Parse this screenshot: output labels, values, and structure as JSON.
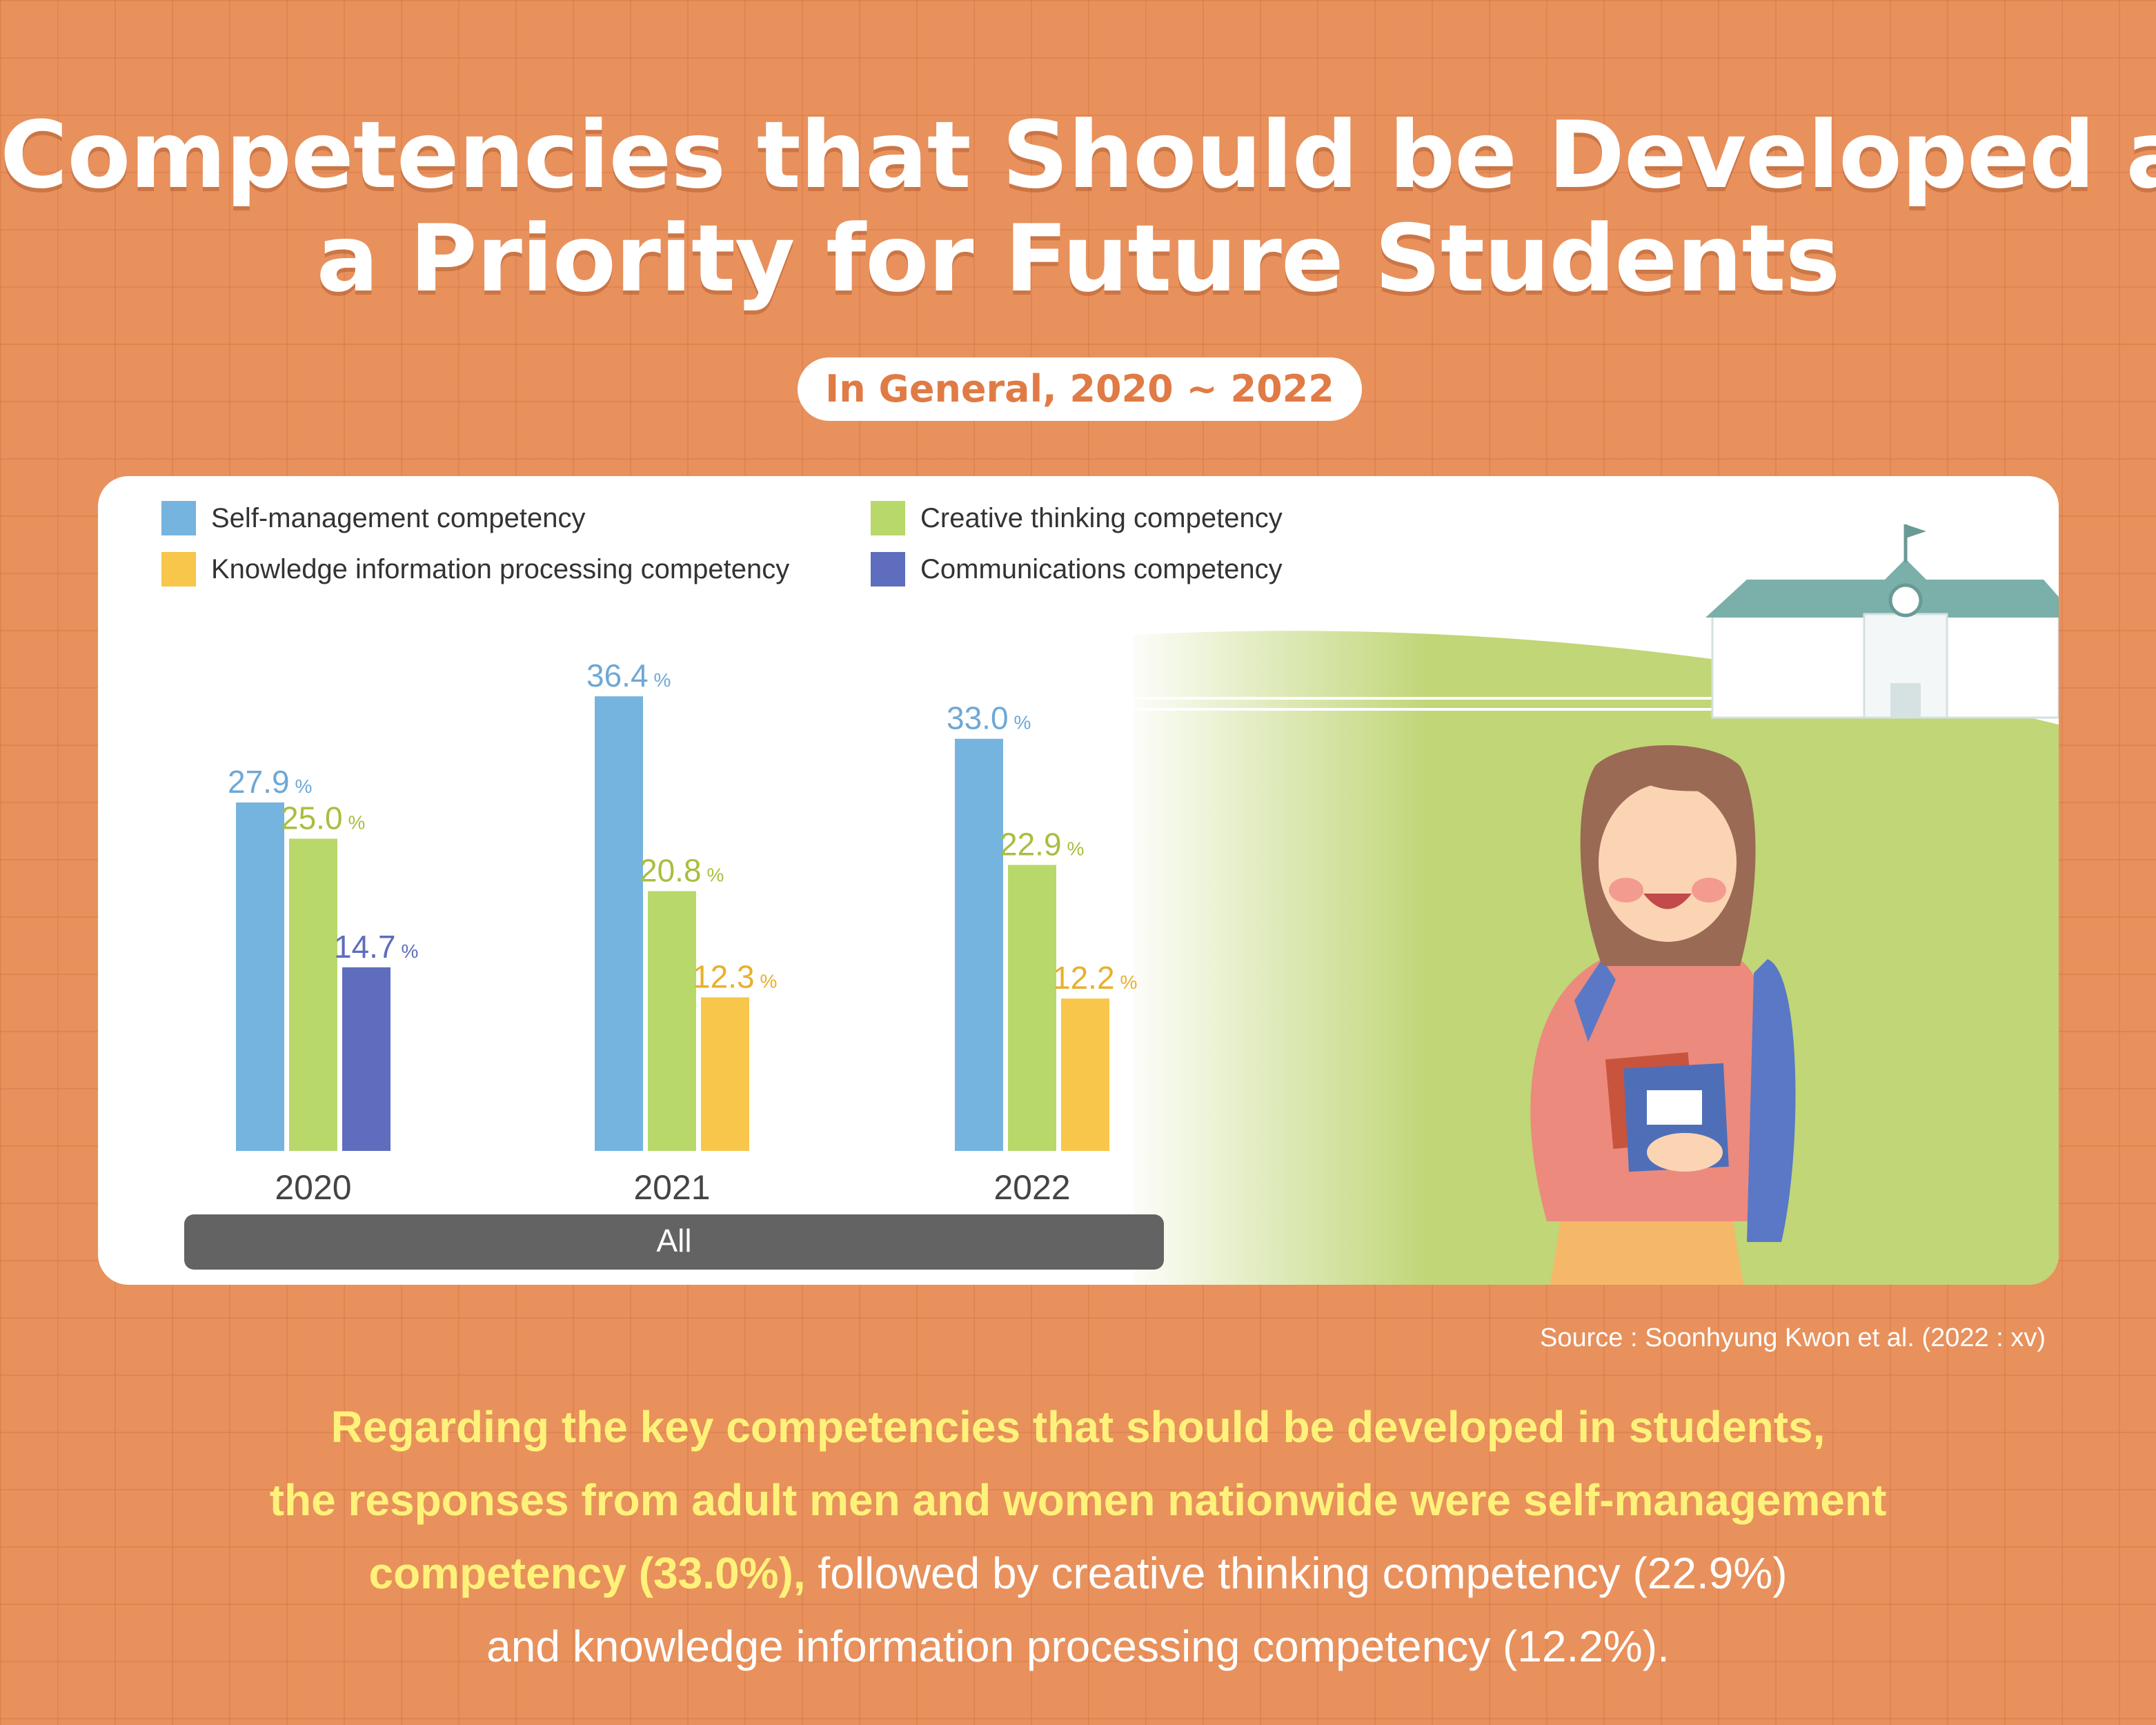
{
  "title": {
    "line1": "Competencies that Should be Developed as",
    "line2": "a Priority for Future Students"
  },
  "subtitle": "In General, 2020 ~ 2022",
  "colors": {
    "self_management": "#74B4DF",
    "creative_thinking": "#B8D86A",
    "knowledge_processing": "#F7C64A",
    "communications": "#5E6DBE",
    "background": "#E8915C",
    "group_bar": "#636363"
  },
  "chart_data": {
    "type": "bar",
    "categories": [
      "2020",
      "2021",
      "2022"
    ],
    "group_label": "All",
    "ylim": [
      0,
      40
    ],
    "legend": [
      "Self-management competency",
      "Creative thinking competency",
      "Knowledge information processing competency",
      "Communications competency"
    ],
    "legend_position": "top-left",
    "series": [
      {
        "name": "Self-management competency",
        "values": [
          27.9,
          36.4,
          33.0
        ]
      },
      {
        "name": "Creative thinking competency",
        "values": [
          25.0,
          20.8,
          22.9
        ]
      },
      {
        "name": "Knowledge information processing competency",
        "values": [
          null,
          12.3,
          12.2
        ]
      },
      {
        "name": "Communications competency",
        "values": [
          14.7,
          null,
          null
        ]
      }
    ],
    "value_labels": [
      [
        "27.9",
        "25.0",
        "14.7"
      ],
      [
        "36.4",
        "20.8",
        "12.3"
      ],
      [
        "33.0",
        "22.9",
        "12.2"
      ]
    ],
    "unit": "%"
  },
  "source": "Source :  Soonhyung Kwon et al. (2022 : xv)",
  "summary": {
    "line1": "Regarding the key competencies that should be developed in students,",
    "line2": "the responses from adult men and women nationwide were self-management",
    "line3_highlight": "competency (33.0%),",
    "line3_rest": " followed by creative thinking competency (22.9%)",
    "line4": "and knowledge information processing competency (12.2%)."
  }
}
